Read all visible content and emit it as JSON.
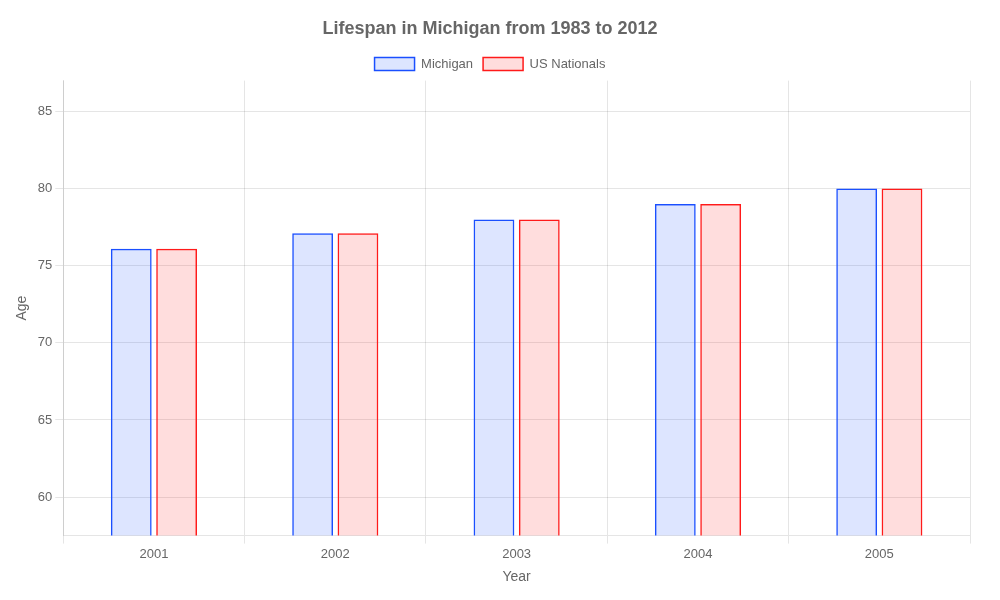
{
  "chart_data": {
    "type": "bar",
    "title": "Lifespan in Michigan from 1983 to 2012",
    "xlabel": "Year",
    "ylabel": "Age",
    "categories": [
      "2001",
      "2002",
      "2003",
      "2004",
      "2005"
    ],
    "series": [
      {
        "name": "Michigan",
        "color": "#1a4fff",
        "values": [
          76.1,
          77.1,
          78.0,
          79.0,
          80.0
        ]
      },
      {
        "name": "US Nationals",
        "color": "#ff1a1a",
        "values": [
          76.1,
          77.1,
          78.0,
          79.0,
          80.0
        ]
      }
    ],
    "ylim": [
      57.5,
      87
    ],
    "yticks": [
      60,
      65,
      70,
      75,
      80,
      85
    ],
    "grid": true,
    "legend": "top"
  }
}
